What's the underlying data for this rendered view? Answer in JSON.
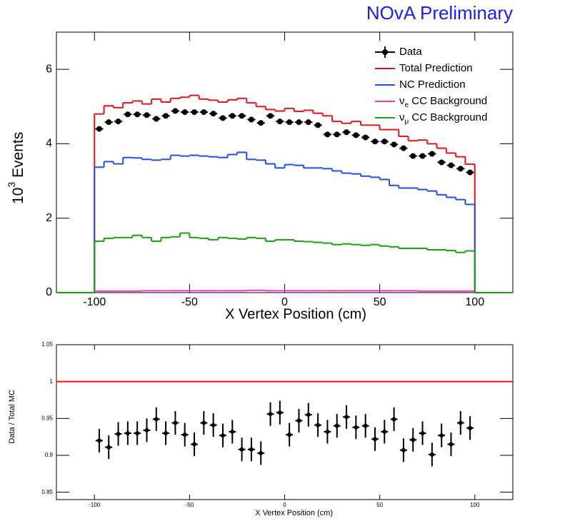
{
  "chart_data": [
    {
      "type": "histogram",
      "title": "NOvA Preliminary",
      "x_label": "X Vertex Position (cm)",
      "y_label": {
        "base": "10",
        "exponent": "3",
        "text": "Events"
      },
      "bins": [
        -100,
        -95,
        -90,
        -85,
        -80,
        -75,
        -70,
        -65,
        -60,
        -55,
        -50,
        -45,
        -40,
        -35,
        -30,
        -25,
        -20,
        -15,
        -10,
        -5,
        0,
        5,
        10,
        15,
        20,
        25,
        30,
        35,
        40,
        45,
        50,
        55,
        60,
        65,
        70,
        75,
        80,
        85,
        90,
        95,
        100
      ],
      "xlim": [
        -120,
        120
      ],
      "ylim": [
        0,
        7
      ],
      "xticks": [
        -100,
        -50,
        0,
        50,
        100
      ],
      "yticks": [
        0,
        2,
        4,
        6
      ],
      "legend": "top-right",
      "series": [
        {
          "name": "Data",
          "style": "points",
          "color": "#000000",
          "values": [
            4.4,
            4.58,
            4.6,
            4.79,
            4.79,
            4.77,
            4.67,
            4.75,
            4.88,
            4.85,
            4.85,
            4.85,
            4.81,
            4.69,
            4.75,
            4.75,
            4.65,
            4.56,
            4.75,
            4.6,
            4.58,
            4.58,
            4.58,
            4.5,
            4.25,
            4.25,
            4.31,
            4.23,
            4.17,
            4.06,
            4.06,
            3.98,
            3.88,
            3.67,
            3.67,
            3.73,
            3.5,
            3.42,
            3.33,
            3.23
          ]
        },
        {
          "name": "Total Prediction",
          "style": "step",
          "color": "#e8121a",
          "values": [
            4.8,
            5.02,
            4.97,
            5.1,
            5.15,
            5.07,
            5.2,
            5.12,
            5.22,
            5.25,
            5.3,
            5.2,
            5.17,
            5.12,
            5.18,
            5.22,
            5.1,
            5.0,
            4.92,
            4.88,
            4.95,
            4.87,
            4.9,
            4.82,
            4.75,
            4.6,
            4.55,
            4.6,
            4.5,
            4.5,
            4.38,
            4.38,
            4.2,
            4.08,
            4.1,
            4.0,
            3.88,
            3.75,
            3.65,
            3.45
          ]
        },
        {
          "name": "NC Prediction",
          "style": "step",
          "color": "#1d4fe0",
          "values": [
            3.37,
            3.52,
            3.46,
            3.63,
            3.62,
            3.58,
            3.56,
            3.58,
            3.69,
            3.67,
            3.69,
            3.67,
            3.65,
            3.63,
            3.71,
            3.77,
            3.58,
            3.56,
            3.46,
            3.35,
            3.44,
            3.42,
            3.35,
            3.35,
            3.33,
            3.27,
            3.21,
            3.19,
            3.13,
            3.1,
            3.04,
            2.88,
            2.81,
            2.81,
            2.77,
            2.73,
            2.63,
            2.56,
            2.5,
            2.37
          ]
        },
        {
          "name": " CC Background",
          "symbol": "ν",
          "subscript": "e",
          "style": "step",
          "color": "#e53ad6",
          "values": [
            0.04,
            0.04,
            0.04,
            0.04,
            0.04,
            0.05,
            0.05,
            0.05,
            0.05,
            0.05,
            0.05,
            0.05,
            0.05,
            0.05,
            0.05,
            0.05,
            0.06,
            0.06,
            0.05,
            0.05,
            0.05,
            0.05,
            0.05,
            0.05,
            0.05,
            0.05,
            0.05,
            0.05,
            0.05,
            0.05,
            0.05,
            0.05,
            0.05,
            0.05,
            0.04,
            0.04,
            0.04,
            0.04,
            0.04,
            0.04
          ]
        },
        {
          "name": " CC Background",
          "symbol": "ν",
          "subscript": "μ",
          "style": "step",
          "color": "#18a00f",
          "values": [
            1.38,
            1.46,
            1.48,
            1.48,
            1.54,
            1.48,
            1.38,
            1.48,
            1.5,
            1.6,
            1.48,
            1.46,
            1.42,
            1.48,
            1.46,
            1.44,
            1.48,
            1.46,
            1.38,
            1.42,
            1.42,
            1.38,
            1.37,
            1.35,
            1.33,
            1.29,
            1.31,
            1.29,
            1.27,
            1.29,
            1.25,
            1.23,
            1.19,
            1.19,
            1.19,
            1.15,
            1.15,
            1.13,
            1.08,
            1.12
          ]
        }
      ]
    },
    {
      "type": "scatter",
      "x_label": "X Vertex Position (cm)",
      "y_label": "Data / Total MC",
      "x": [
        -97.5,
        -92.5,
        -87.5,
        -82.5,
        -77.5,
        -72.5,
        -67.5,
        -62.5,
        -57.5,
        -52.5,
        -47.5,
        -42.5,
        -37.5,
        -32.5,
        -27.5,
        -22.5,
        -17.5,
        -12.5,
        -7.5,
        -2.5,
        2.5,
        7.5,
        12.5,
        17.5,
        22.5,
        27.5,
        32.5,
        37.5,
        42.5,
        47.5,
        52.5,
        57.5,
        62.5,
        67.5,
        72.5,
        77.5,
        82.5,
        87.5,
        92.5,
        97.5
      ],
      "values": [
        0.92,
        0.911,
        0.929,
        0.93,
        0.93,
        0.934,
        0.949,
        0.93,
        0.944,
        0.928,
        0.915,
        0.944,
        0.941,
        0.927,
        0.932,
        0.908,
        0.908,
        0.903,
        0.956,
        0.958,
        0.928,
        0.947,
        0.955,
        0.941,
        0.932,
        0.94,
        0.952,
        0.938,
        0.94,
        0.922,
        0.932,
        0.949,
        0.907,
        0.921,
        0.93,
        0.901,
        0.927,
        0.915,
        0.944,
        0.937
      ],
      "errors": [
        0.016,
        0.016,
        0.016,
        0.016,
        0.016,
        0.016,
        0.016,
        0.016,
        0.016,
        0.016,
        0.016,
        0.016,
        0.016,
        0.016,
        0.016,
        0.016,
        0.016,
        0.016,
        0.016,
        0.016,
        0.016,
        0.016,
        0.016,
        0.016,
        0.016,
        0.016,
        0.016,
        0.016,
        0.016,
        0.016,
        0.016,
        0.016,
        0.016,
        0.016,
        0.016,
        0.016,
        0.016,
        0.016,
        0.016,
        0.016
      ],
      "color": "#000000",
      "reference": 1,
      "reference_color": "#e8121a",
      "xlim": [
        -120,
        120
      ],
      "ylim": [
        0.84,
        1.05
      ],
      "xticks": [
        -100,
        -50,
        0,
        50,
        100
      ],
      "yticks": [
        0.85,
        0.9,
        0.95,
        1,
        1.05
      ]
    }
  ]
}
